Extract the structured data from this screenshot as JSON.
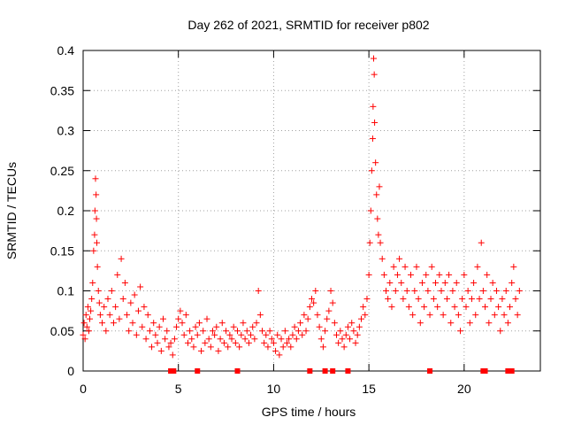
{
  "chart_data": {
    "type": "scatter",
    "title": "Day 262 of 2021, SRMTID for receiver p802",
    "xlabel": "GPS time / hours",
    "ylabel": "SRMTID / TECUs",
    "xlim": [
      0,
      24
    ],
    "ylim": [
      0,
      0.4
    ],
    "xticks": [
      0,
      5,
      10,
      15,
      20
    ],
    "yticks": [
      0,
      0.05,
      0.1,
      0.15,
      0.2,
      0.25,
      0.3,
      0.35,
      0.4
    ],
    "ytick_labels": [
      "0",
      "0.05",
      "0.1",
      "0.15",
      "0.2",
      "0.25",
      "0.3",
      "0.35",
      "0.4"
    ],
    "grid": true,
    "marker": "plus",
    "color": "#ff0000",
    "series": [
      {
        "name": "SRMTID",
        "points": [
          [
            0.0,
            0.045
          ],
          [
            0.05,
            0.06
          ],
          [
            0.1,
            0.04
          ],
          [
            0.15,
            0.07
          ],
          [
            0.2,
            0.055
          ],
          [
            0.25,
            0.08
          ],
          [
            0.3,
            0.05
          ],
          [
            0.35,
            0.065
          ],
          [
            0.4,
            0.075
          ],
          [
            0.45,
            0.09
          ],
          [
            0.5,
            0.11
          ],
          [
            0.55,
            0.15
          ],
          [
            0.6,
            0.17
          ],
          [
            0.62,
            0.2
          ],
          [
            0.65,
            0.24
          ],
          [
            0.68,
            0.22
          ],
          [
            0.7,
            0.19
          ],
          [
            0.72,
            0.16
          ],
          [
            0.75,
            0.13
          ],
          [
            0.8,
            0.1
          ],
          [
            0.85,
            0.085
          ],
          [
            0.9,
            0.07
          ],
          [
            1.0,
            0.06
          ],
          [
            1.1,
            0.08
          ],
          [
            1.2,
            0.05
          ],
          [
            1.3,
            0.09
          ],
          [
            1.4,
            0.07
          ],
          [
            1.5,
            0.1
          ],
          [
            1.6,
            0.06
          ],
          [
            1.7,
            0.08
          ],
          [
            1.8,
            0.12
          ],
          [
            1.9,
            0.065
          ],
          [
            2.0,
            0.14
          ],
          [
            2.1,
            0.09
          ],
          [
            2.2,
            0.11
          ],
          [
            2.3,
            0.07
          ],
          [
            2.4,
            0.05
          ],
          [
            2.5,
            0.085
          ],
          [
            2.6,
            0.06
          ],
          [
            2.7,
            0.095
          ],
          [
            2.8,
            0.045
          ],
          [
            2.9,
            0.075
          ],
          [
            3.0,
            0.105
          ],
          [
            3.1,
            0.055
          ],
          [
            3.2,
            0.08
          ],
          [
            3.3,
            0.04
          ],
          [
            3.4,
            0.07
          ],
          [
            3.5,
            0.05
          ],
          [
            3.6,
            0.03
          ],
          [
            3.7,
            0.06
          ],
          [
            3.8,
            0.045
          ],
          [
            3.9,
            0.035
          ],
          [
            4.0,
            0.055
          ],
          [
            4.1,
            0.025
          ],
          [
            4.2,
            0.065
          ],
          [
            4.3,
            0.04
          ],
          [
            4.4,
            0.05
          ],
          [
            4.5,
            0.03
          ],
          [
            4.6,
            0.035
          ],
          [
            4.7,
            0.02
          ],
          [
            4.8,
            0.04
          ],
          [
            4.9,
            0.055
          ],
          [
            5.0,
            0.065
          ],
          [
            5.1,
            0.075
          ],
          [
            5.2,
            0.06
          ],
          [
            5.3,
            0.045
          ],
          [
            5.4,
            0.07
          ],
          [
            5.5,
            0.035
          ],
          [
            5.6,
            0.05
          ],
          [
            5.7,
            0.04
          ],
          [
            5.8,
            0.03
          ],
          [
            5.9,
            0.055
          ],
          [
            6.0,
            0.045
          ],
          [
            6.1,
            0.06
          ],
          [
            6.2,
            0.025
          ],
          [
            6.3,
            0.05
          ],
          [
            6.4,
            0.035
          ],
          [
            6.5,
            0.065
          ],
          [
            6.6,
            0.04
          ],
          [
            6.7,
            0.03
          ],
          [
            6.8,
            0.05
          ],
          [
            6.9,
            0.045
          ],
          [
            7.0,
            0.055
          ],
          [
            7.1,
            0.025
          ],
          [
            7.2,
            0.04
          ],
          [
            7.3,
            0.06
          ],
          [
            7.4,
            0.035
          ],
          [
            7.5,
            0.05
          ],
          [
            7.6,
            0.03
          ],
          [
            7.7,
            0.045
          ],
          [
            7.8,
            0.04
          ],
          [
            7.9,
            0.055
          ],
          [
            8.0,
            0.035
          ],
          [
            8.1,
            0.05
          ],
          [
            8.2,
            0.03
          ],
          [
            8.3,
            0.045
          ],
          [
            8.4,
            0.06
          ],
          [
            8.5,
            0.04
          ],
          [
            8.6,
            0.05
          ],
          [
            8.7,
            0.035
          ],
          [
            8.8,
            0.045
          ],
          [
            8.9,
            0.055
          ],
          [
            9.0,
            0.04
          ],
          [
            9.1,
            0.06
          ],
          [
            9.2,
            0.1
          ],
          [
            9.3,
            0.07
          ],
          [
            9.4,
            0.05
          ],
          [
            9.5,
            0.035
          ],
          [
            9.6,
            0.045
          ],
          [
            9.7,
            0.03
          ],
          [
            9.8,
            0.05
          ],
          [
            9.9,
            0.04
          ],
          [
            10.0,
            0.035
          ],
          [
            10.1,
            0.025
          ],
          [
            10.2,
            0.045
          ],
          [
            10.3,
            0.02
          ],
          [
            10.4,
            0.04
          ],
          [
            10.5,
            0.03
          ],
          [
            10.6,
            0.05
          ],
          [
            10.7,
            0.035
          ],
          [
            10.8,
            0.04
          ],
          [
            10.9,
            0.03
          ],
          [
            11.0,
            0.045
          ],
          [
            11.1,
            0.055
          ],
          [
            11.2,
            0.04
          ],
          [
            11.3,
            0.05
          ],
          [
            11.4,
            0.06
          ],
          [
            11.5,
            0.045
          ],
          [
            11.6,
            0.07
          ],
          [
            11.7,
            0.05
          ],
          [
            11.8,
            0.065
          ],
          [
            11.9,
            0.08
          ],
          [
            12.0,
            0.09
          ],
          [
            12.1,
            0.085
          ],
          [
            12.2,
            0.1
          ],
          [
            12.3,
            0.07
          ],
          [
            12.4,
            0.055
          ],
          [
            12.5,
            0.04
          ],
          [
            12.6,
            0.03
          ],
          [
            12.7,
            0.05
          ],
          [
            12.8,
            0.065
          ],
          [
            12.9,
            0.075
          ],
          [
            13.0,
            0.1
          ],
          [
            13.1,
            0.085
          ],
          [
            13.2,
            0.06
          ],
          [
            13.3,
            0.045
          ],
          [
            13.4,
            0.035
          ],
          [
            13.5,
            0.05
          ],
          [
            13.6,
            0.04
          ],
          [
            13.7,
            0.03
          ],
          [
            13.8,
            0.045
          ],
          [
            13.9,
            0.055
          ],
          [
            14.0,
            0.04
          ],
          [
            14.1,
            0.06
          ],
          [
            14.2,
            0.05
          ],
          [
            14.3,
            0.035
          ],
          [
            14.4,
            0.045
          ],
          [
            14.5,
            0.055
          ],
          [
            14.6,
            0.065
          ],
          [
            14.7,
            0.08
          ],
          [
            14.8,
            0.07
          ],
          [
            14.9,
            0.09
          ],
          [
            15.0,
            0.12
          ],
          [
            15.05,
            0.16
          ],
          [
            15.1,
            0.2
          ],
          [
            15.15,
            0.25
          ],
          [
            15.2,
            0.29
          ],
          [
            15.22,
            0.33
          ],
          [
            15.25,
            0.39
          ],
          [
            15.28,
            0.37
          ],
          [
            15.3,
            0.31
          ],
          [
            15.35,
            0.26
          ],
          [
            15.4,
            0.22
          ],
          [
            15.45,
            0.19
          ],
          [
            15.5,
            0.17
          ],
          [
            15.55,
            0.23
          ],
          [
            15.6,
            0.16
          ],
          [
            15.7,
            0.14
          ],
          [
            15.8,
            0.12
          ],
          [
            15.9,
            0.1
          ],
          [
            16.0,
            0.09
          ],
          [
            16.1,
            0.11
          ],
          [
            16.2,
            0.08
          ],
          [
            16.3,
            0.13
          ],
          [
            16.4,
            0.1
          ],
          [
            16.5,
            0.12
          ],
          [
            16.6,
            0.14
          ],
          [
            16.7,
            0.11
          ],
          [
            16.8,
            0.09
          ],
          [
            16.9,
            0.13
          ],
          [
            17.0,
            0.1
          ],
          [
            17.1,
            0.08
          ],
          [
            17.2,
            0.12
          ],
          [
            17.3,
            0.07
          ],
          [
            17.4,
            0.1
          ],
          [
            17.5,
            0.13
          ],
          [
            17.6,
            0.09
          ],
          [
            17.7,
            0.06
          ],
          [
            17.8,
            0.11
          ],
          [
            17.9,
            0.08
          ],
          [
            18.0,
            0.12
          ],
          [
            18.1,
            0.1
          ],
          [
            18.2,
            0.07
          ],
          [
            18.3,
            0.13
          ],
          [
            18.4,
            0.09
          ],
          [
            18.5,
            0.11
          ],
          [
            18.6,
            0.08
          ],
          [
            18.7,
            0.12
          ],
          [
            18.8,
            0.1
          ],
          [
            18.9,
            0.07
          ],
          [
            19.0,
            0.11
          ],
          [
            19.1,
            0.09
          ],
          [
            19.2,
            0.12
          ],
          [
            19.3,
            0.06
          ],
          [
            19.4,
            0.1
          ],
          [
            19.5,
            0.08
          ],
          [
            19.6,
            0.11
          ],
          [
            19.7,
            0.07
          ],
          [
            19.8,
            0.05
          ],
          [
            19.9,
            0.09
          ],
          [
            20.0,
            0.12
          ],
          [
            20.1,
            0.08
          ],
          [
            20.2,
            0.1
          ],
          [
            20.3,
            0.06
          ],
          [
            20.4,
            0.09
          ],
          [
            20.5,
            0.11
          ],
          [
            20.6,
            0.07
          ],
          [
            20.7,
            0.13
          ],
          [
            20.8,
            0.09
          ],
          [
            20.9,
            0.16
          ],
          [
            21.0,
            0.1
          ],
          [
            21.1,
            0.08
          ],
          [
            21.2,
            0.12
          ],
          [
            21.3,
            0.06
          ],
          [
            21.4,
            0.09
          ],
          [
            21.5,
            0.11
          ],
          [
            21.6,
            0.07
          ],
          [
            21.7,
            0.1
          ],
          [
            21.8,
            0.08
          ],
          [
            21.9,
            0.05
          ],
          [
            22.0,
            0.09
          ],
          [
            22.1,
            0.07
          ],
          [
            22.2,
            0.1
          ],
          [
            22.3,
            0.06
          ],
          [
            22.4,
            0.08
          ],
          [
            22.5,
            0.11
          ],
          [
            22.6,
            0.13
          ],
          [
            22.7,
            0.09
          ],
          [
            22.8,
            0.07
          ],
          [
            22.9,
            0.1
          ]
        ]
      }
    ],
    "gaps_on_axis": [
      4.6,
      4.7,
      4.75,
      6.0,
      8.1,
      11.9,
      12.7,
      13.1,
      13.9,
      18.2,
      21.0,
      21.1,
      22.3,
      22.5
    ]
  }
}
